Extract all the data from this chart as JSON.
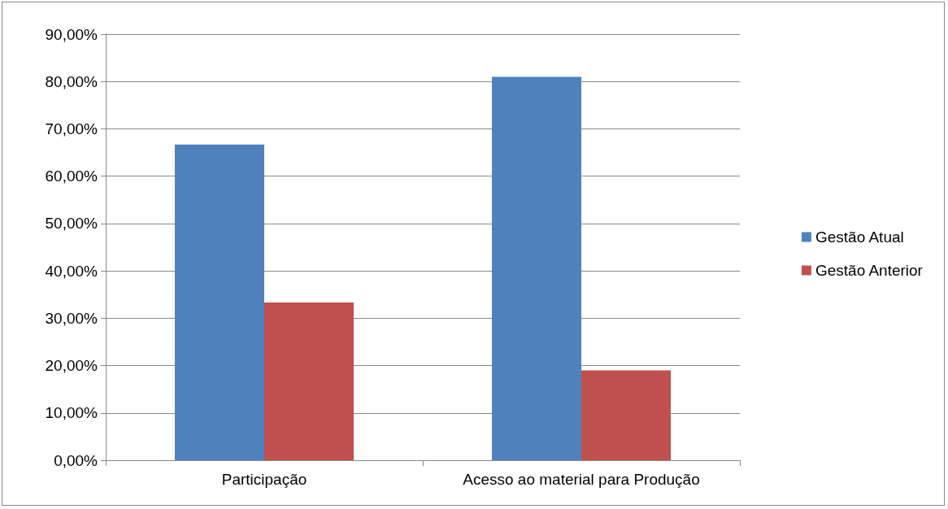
{
  "chart_data": {
    "type": "bar",
    "categories": [
      "Participação",
      "Acesso ao material para Produção"
    ],
    "series": [
      {
        "name": "Gestão Atual",
        "color": "#4f81bd",
        "values": [
          66.7,
          81.0
        ]
      },
      {
        "name": "Gestão Anterior",
        "color": "#c0504d",
        "values": [
          33.3,
          19.0
        ]
      }
    ],
    "ylim": [
      0,
      90
    ],
    "yticks": [
      {
        "value": 0,
        "label": "0,00%"
      },
      {
        "value": 10,
        "label": "10,00%"
      },
      {
        "value": 20,
        "label": "20,00%"
      },
      {
        "value": 30,
        "label": "30,00%"
      },
      {
        "value": 40,
        "label": "40,00%"
      },
      {
        "value": 50,
        "label": "50,00%"
      },
      {
        "value": 60,
        "label": "60,00%"
      },
      {
        "value": 70,
        "label": "70,00%"
      },
      {
        "value": 80,
        "label": "80,00%"
      },
      {
        "value": 90,
        "label": "90,00%"
      }
    ],
    "grid": "y",
    "legend": "right"
  }
}
